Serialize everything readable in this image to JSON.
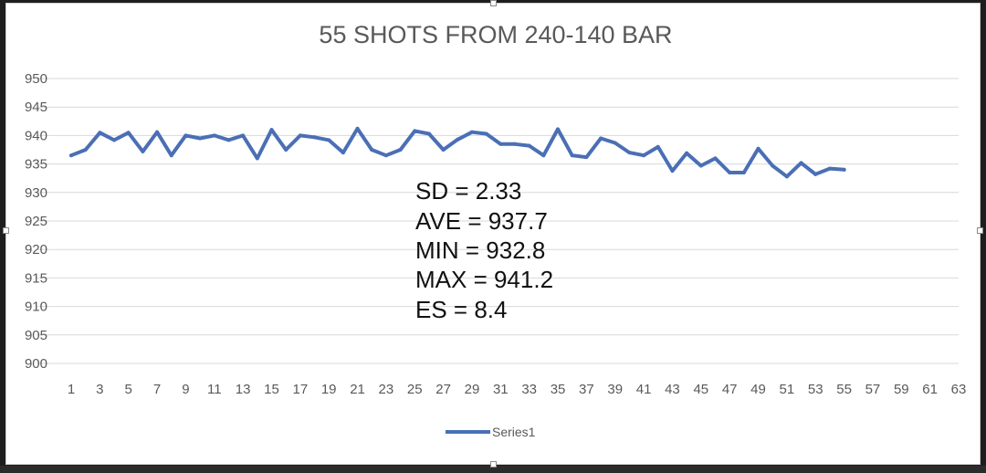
{
  "chart_data": {
    "type": "line",
    "title": "55 SHOTS FROM 240-140 BAR",
    "xlabel": "",
    "ylabel": "",
    "ylim": [
      900,
      950
    ],
    "y_ticks": [
      "950",
      "945",
      "940",
      "935",
      "930",
      "925",
      "920",
      "915",
      "910",
      "905",
      "900"
    ],
    "x_range": [
      1,
      63
    ],
    "x_ticks": [
      "1",
      "3",
      "5",
      "7",
      "9",
      "11",
      "13",
      "15",
      "17",
      "19",
      "21",
      "23",
      "25",
      "27",
      "29",
      "31",
      "33",
      "35",
      "37",
      "39",
      "41",
      "43",
      "45",
      "47",
      "49",
      "51",
      "53",
      "55",
      "57",
      "59",
      "61",
      "63"
    ],
    "grid": true,
    "legend_position": "bottom",
    "series": [
      {
        "name": "Series1",
        "color": "#4a6fb5",
        "x": [
          1,
          2,
          3,
          4,
          5,
          6,
          7,
          8,
          9,
          10,
          11,
          12,
          13,
          14,
          15,
          16,
          17,
          18,
          19,
          20,
          21,
          22,
          23,
          24,
          25,
          26,
          27,
          28,
          29,
          30,
          31,
          32,
          33,
          34,
          35,
          36,
          37,
          38,
          39,
          40,
          41,
          42,
          43,
          44,
          45,
          46,
          47,
          48,
          49,
          50,
          51,
          52,
          53,
          54,
          55
        ],
        "values": [
          936.5,
          937.5,
          940.5,
          939.2,
          940.5,
          937.2,
          940.6,
          936.5,
          940.0,
          939.5,
          940.0,
          939.2,
          940.0,
          936.0,
          941.0,
          937.5,
          940.0,
          939.7,
          939.2,
          937.0,
          941.2,
          937.5,
          936.5,
          937.5,
          940.8,
          940.3,
          937.5,
          939.3,
          940.6,
          940.3,
          938.5,
          938.5,
          938.2,
          936.5,
          941.1,
          936.5,
          936.2,
          939.5,
          938.7,
          937.0,
          936.5,
          938.0,
          933.8,
          936.9,
          934.7,
          936.0,
          933.5,
          933.5,
          937.7,
          934.7,
          932.8,
          935.2,
          933.2,
          934.2,
          934.0
        ]
      }
    ],
    "annotations": [
      "SD = 2.33",
      "AVE = 937.7",
      "MIN = 932.8",
      "MAX = 941.2",
      "ES = 8.4"
    ]
  }
}
